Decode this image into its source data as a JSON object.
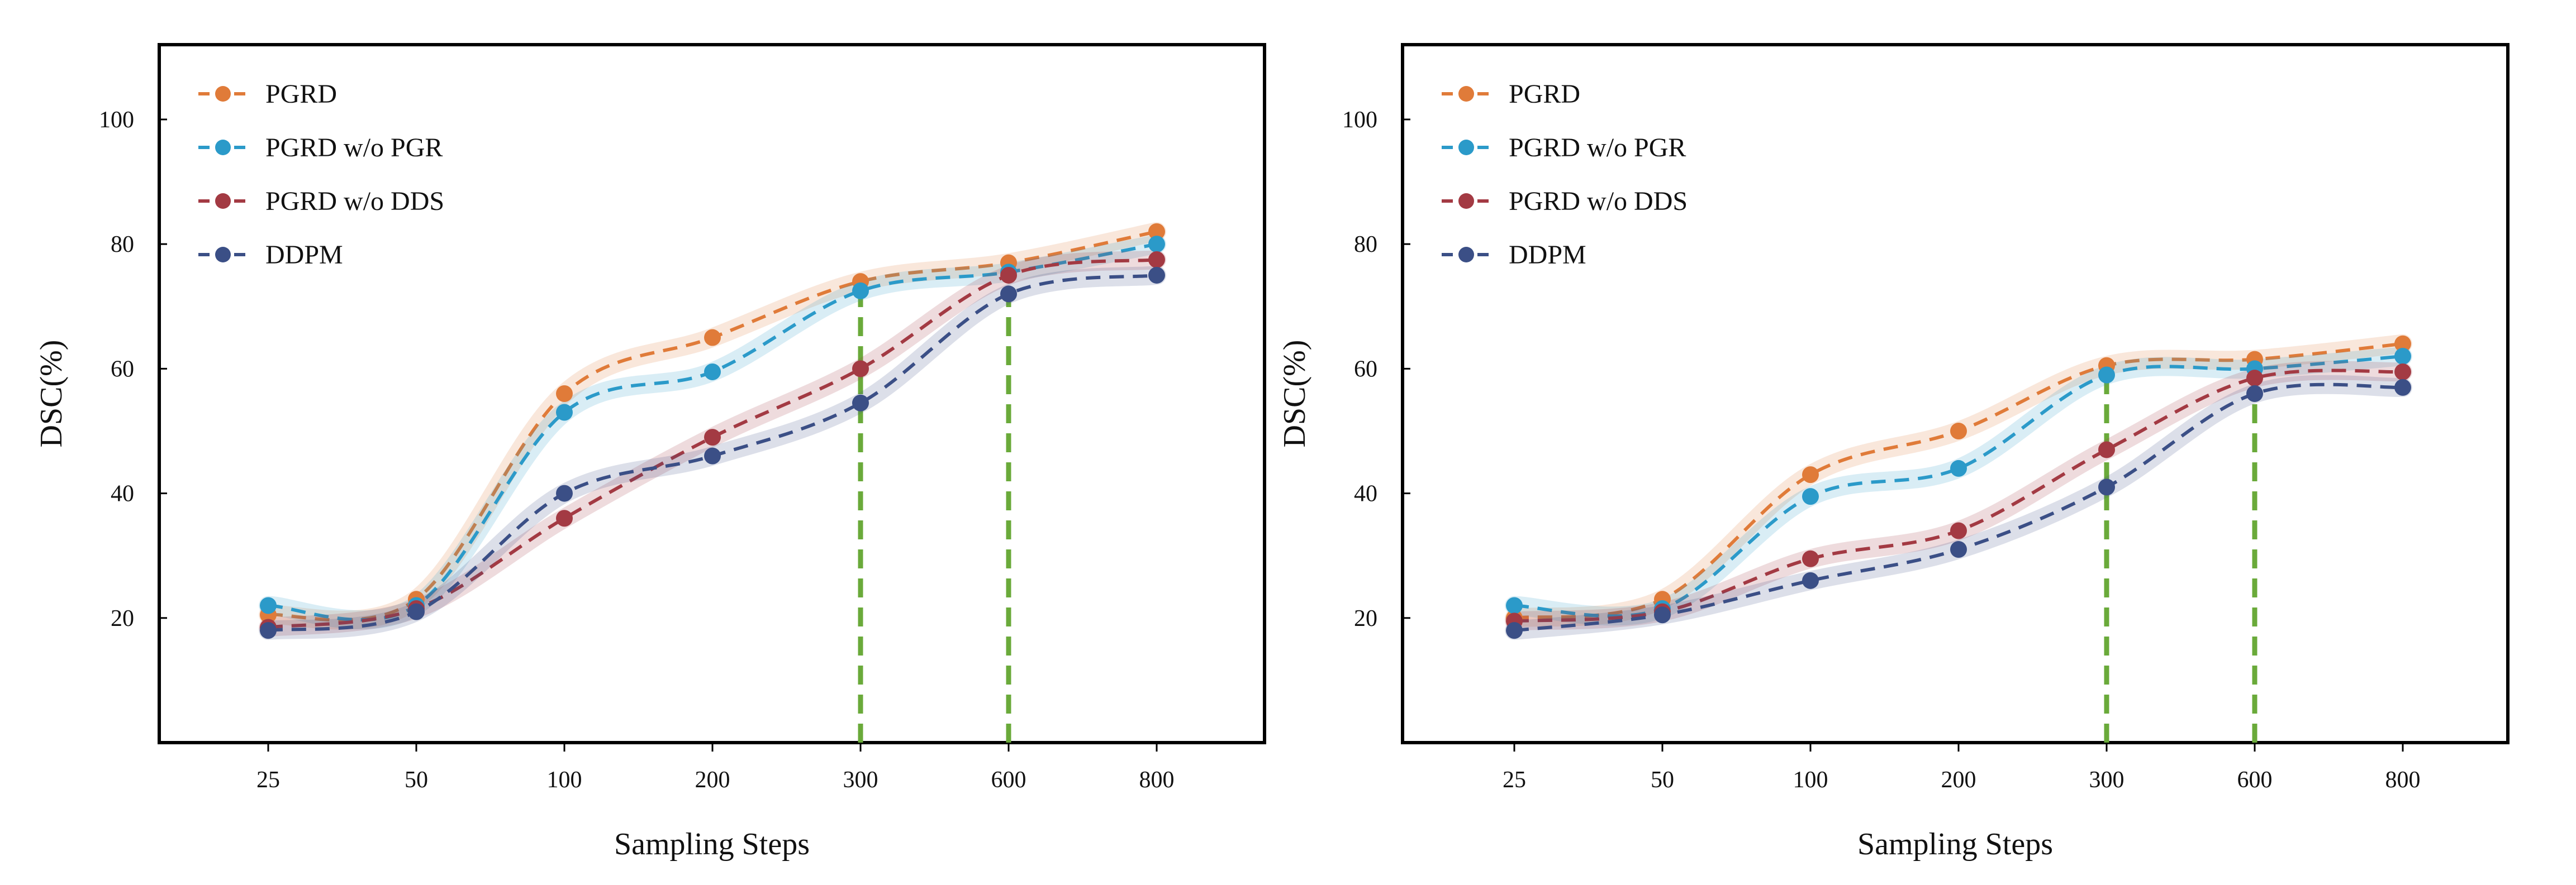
{
  "chart_data": [
    {
      "type": "line",
      "title": "",
      "xlabel": "Sampling Steps",
      "ylabel": "DSC(%)",
      "categories": [
        "25",
        "50",
        "100",
        "200",
        "300",
        "600",
        "800"
      ],
      "yticks": [
        20,
        40,
        60,
        80,
        100
      ],
      "ylim": [
        0,
        112
      ],
      "grid": false,
      "legend_position": "top-left",
      "highlight_steps": [
        "300",
        "600"
      ],
      "highlight_color": "#6aaa3a",
      "series": [
        {
          "name": "PGRD",
          "color": "#e07b39",
          "values": [
            20.5,
            23,
            56,
            65,
            74,
            77,
            82
          ]
        },
        {
          "name": "PGRD w/o PGR",
          "color": "#2b9ac9",
          "values": [
            22,
            22,
            53,
            59.5,
            72.5,
            75.5,
            80
          ]
        },
        {
          "name": "PGRD w/o DDS",
          "color": "#a33a43",
          "values": [
            18.5,
            21.5,
            36,
            49,
            60,
            75,
            77.5
          ]
        },
        {
          "name": "DDPM",
          "color": "#3b4f86",
          "values": [
            18,
            21,
            40,
            46,
            54.5,
            72,
            75
          ]
        }
      ]
    },
    {
      "type": "line",
      "title": "",
      "xlabel": "Sampling Steps",
      "ylabel": "DSC(%)",
      "categories": [
        "25",
        "50",
        "100",
        "200",
        "300",
        "600",
        "800"
      ],
      "yticks": [
        20,
        40,
        60,
        80,
        100
      ],
      "ylim": [
        0,
        112
      ],
      "grid": false,
      "legend_position": "top-left",
      "highlight_steps": [
        "300",
        "600"
      ],
      "highlight_color": "#6aaa3a",
      "series": [
        {
          "name": "PGRD",
          "color": "#e07b39",
          "values": [
            20,
            23,
            43,
            50,
            60.5,
            61.5,
            64
          ]
        },
        {
          "name": "PGRD w/o PGR",
          "color": "#2b9ac9",
          "values": [
            22,
            21.5,
            39.5,
            44,
            59,
            60,
            62
          ]
        },
        {
          "name": "PGRD w/o DDS",
          "color": "#a33a43",
          "values": [
            19.5,
            21,
            29.5,
            34,
            47,
            58.5,
            59.5
          ]
        },
        {
          "name": "DDPM",
          "color": "#3b4f86",
          "values": [
            18,
            20.5,
            26,
            31,
            41,
            56,
            57
          ]
        }
      ]
    }
  ]
}
